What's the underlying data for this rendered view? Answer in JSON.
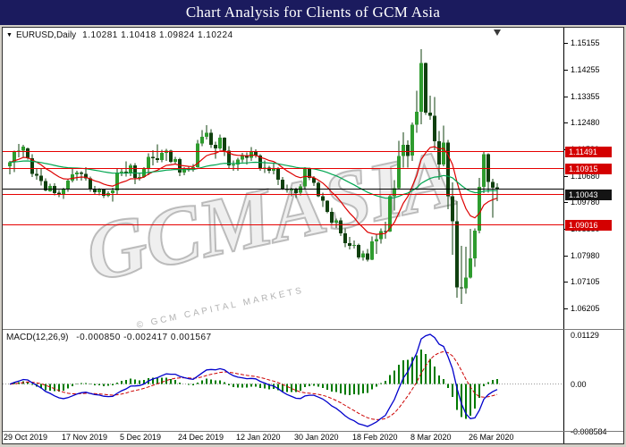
{
  "title_bar": {
    "title": "Chart Analysis for Clients of GCM Asia"
  },
  "icons": {
    "dropdown_glyph": "▼"
  },
  "colors": {
    "title_bar_bg": "#1b1b5e",
    "title_bar_fg": "#ffffff",
    "chart_bg": "#ffffff"
  },
  "price_panel": {
    "symbol_label": "EURUSD,Daily",
    "ohlc_label": "1.10281 1.10418 1.09824 1.10224"
  },
  "macd_panel": {
    "name_label": "MACD(12,26,9)",
    "values_label": "-0.000850 -0.002417 0.001567"
  },
  "watermark": {
    "text": "GCMASIA",
    "subtext": "© GCM CAPITAL MARKETS"
  },
  "chart_data": [
    {
      "type": "candlestick",
      "symbol": "EURUSD",
      "timeframe": "Daily",
      "title": "EURUSD Daily",
      "ylim": [
        1.06205,
        1.15155
      ],
      "yticks": [
        "1.15155",
        "1.14255",
        "1.13355",
        "1.12480",
        "1.11580",
        "1.10680",
        "1.09780",
        "1.08880",
        "1.07980",
        "1.07105",
        "1.06205"
      ],
      "x_labels": [
        "29 Oct 2019",
        "17 Nov 2019",
        "5 Dec 2019",
        "24 Dec 2019",
        "12 Jan 2020",
        "30 Jan 2020",
        "18 Feb 2020",
        "8 Mar 2020",
        "26 Mar 2020"
      ],
      "last_bar": {
        "open": 1.10281,
        "high": 1.10418,
        "low": 1.09824,
        "close": 1.10224
      },
      "bid_price": 1.10224,
      "hlines": [
        {
          "price": 1.11491,
          "label": "1.11491",
          "color": "#e60000",
          "label_bg": "#d40000"
        },
        {
          "price": 1.10915,
          "label": "1.10915",
          "color": "#e60000",
          "label_bg": "#d40000"
        },
        {
          "price": 1.10043,
          "label": "1.10043",
          "color": "#e60000",
          "label_bg": "#141414"
        },
        {
          "price": 1.09016,
          "label": "1.09016",
          "color": "#e60000",
          "label_bg": "#d40000"
        }
      ],
      "overlays": [
        {
          "type": "ema",
          "period": 13,
          "color": "#dd0000"
        },
        {
          "type": "ema",
          "period": 55,
          "color": "#00a550"
        }
      ],
      "colors": {
        "bull": "#2e9c2e",
        "bear": "#10400f",
        "wick": "#10400f"
      },
      "ohlc": [
        [
          1.11,
          1.1118,
          1.1073,
          1.1113
        ],
        [
          1.1113,
          1.1152,
          1.108,
          1.1151
        ],
        [
          1.1151,
          1.1175,
          1.113,
          1.1152
        ],
        [
          1.1152,
          1.1172,
          1.1128,
          1.1166
        ],
        [
          1.116,
          1.1163,
          1.1122,
          1.1127
        ],
        [
          1.1127,
          1.114,
          1.1064,
          1.1074
        ],
        [
          1.1074,
          1.1093,
          1.1054,
          1.1068
        ],
        [
          1.1068,
          1.1091,
          1.1035,
          1.105
        ],
        [
          1.105,
          1.1059,
          1.1016,
          1.1018
        ],
        [
          1.1016,
          1.1041,
          1.1014,
          1.1034
        ],
        [
          1.1034,
          1.1043,
          1.1002,
          1.101
        ],
        [
          1.101,
          1.102,
          1.0995,
          1.1006
        ],
        [
          1.1006,
          1.1027,
          1.0989,
          1.1021
        ],
        [
          1.1021,
          1.1056,
          1.1014,
          1.1051
        ],
        [
          1.1051,
          1.109,
          1.1045,
          1.1072
        ],
        [
          1.1072,
          1.1085,
          1.1052,
          1.1078
        ],
        [
          1.1078,
          1.1083,
          1.1052,
          1.1074
        ],
        [
          1.1074,
          1.1097,
          1.1052,
          1.1059
        ],
        [
          1.1059,
          1.1065,
          1.1014,
          1.1021
        ],
        [
          1.1021,
          1.1033,
          1.1003,
          1.1013
        ],
        [
          1.1013,
          1.1026,
          1.1001,
          1.1021
        ],
        [
          1.1021,
          1.1024,
          1.0992,
          1.1
        ],
        [
          1.1,
          1.1016,
          1.0995,
          1.1009
        ],
        [
          1.1009,
          1.1028,
          1.0981,
          1.1018
        ],
        [
          1.1018,
          1.109,
          1.1003,
          1.1078
        ],
        [
          1.1078,
          1.1093,
          1.1066,
          1.1082
        ],
        [
          1.1082,
          1.1116,
          1.1065,
          1.1077
        ],
        [
          1.1077,
          1.1109,
          1.1066,
          1.1103
        ],
        [
          1.1103,
          1.111,
          1.104,
          1.106
        ],
        [
          1.106,
          1.1079,
          1.1052,
          1.1064
        ],
        [
          1.1064,
          1.1097,
          1.106,
          1.1093
        ],
        [
          1.1093,
          1.1144,
          1.107,
          1.1131
        ],
        [
          1.1131,
          1.1154,
          1.1102,
          1.1127
        ],
        [
          1.1127,
          1.1174,
          1.1111,
          1.112
        ],
        [
          1.112,
          1.1156,
          1.1113,
          1.1145
        ],
        [
          1.1145,
          1.1158,
          1.1118,
          1.1152
        ],
        [
          1.1152,
          1.1155,
          1.111,
          1.1114
        ],
        [
          1.1114,
          1.1131,
          1.1106,
          1.1123
        ],
        [
          1.1123,
          1.1128,
          1.1066,
          1.1078
        ],
        [
          1.1078,
          1.1096,
          1.1069,
          1.109
        ],
        [
          1.109,
          1.1098,
          1.1081,
          1.1088
        ],
        [
          1.1088,
          1.1107,
          1.1081,
          1.1096
        ],
        [
          1.1096,
          1.1188,
          1.1095,
          1.1177
        ],
        [
          1.1177,
          1.1221,
          1.1168,
          1.1199
        ],
        [
          1.1199,
          1.1239,
          1.119,
          1.1212
        ],
        [
          1.1212,
          1.1225,
          1.1162,
          1.1172
        ],
        [
          1.1172,
          1.1182,
          1.1126,
          1.116
        ],
        [
          1.116,
          1.1206,
          1.1155,
          1.1196
        ],
        [
          1.1196,
          1.1198,
          1.1134,
          1.1153
        ],
        [
          1.1153,
          1.1167,
          1.1093,
          1.1103
        ],
        [
          1.1103,
          1.1119,
          1.1085,
          1.1105
        ],
        [
          1.1105,
          1.1129,
          1.1084,
          1.1122
        ],
        [
          1.1122,
          1.1145,
          1.1113,
          1.1134
        ],
        [
          1.1134,
          1.1146,
          1.1105,
          1.1128
        ],
        [
          1.1128,
          1.1164,
          1.1118,
          1.115
        ],
        [
          1.115,
          1.1157,
          1.1128,
          1.1136
        ],
        [
          1.1136,
          1.1141,
          1.1085,
          1.109
        ],
        [
          1.109,
          1.1119,
          1.1077,
          1.1095
        ],
        [
          1.1095,
          1.1101,
          1.1076,
          1.1084
        ],
        [
          1.1084,
          1.1109,
          1.1072,
          1.1093
        ],
        [
          1.1093,
          1.1097,
          1.1037,
          1.1054
        ],
        [
          1.1054,
          1.1064,
          1.102,
          1.1023
        ],
        [
          1.1023,
          1.1038,
          1.101,
          1.1019
        ],
        [
          1.1019,
          1.1028,
          1.0998,
          1.1022
        ],
        [
          1.1022,
          1.1027,
          1.0992,
          1.101
        ],
        [
          1.101,
          1.104,
          1.1001,
          1.1032
        ],
        [
          1.1032,
          1.1096,
          1.1025,
          1.1093
        ],
        [
          1.1093,
          1.1095,
          1.1053,
          1.106
        ],
        [
          1.106,
          1.1066,
          1.1033,
          1.1044
        ],
        [
          1.1044,
          1.1048,
          1.0995,
          1.0999
        ],
        [
          1.0999,
          1.101,
          1.0963,
          1.0983
        ],
        [
          1.0983,
          1.0985,
          1.0941,
          1.0946
        ],
        [
          1.0946,
          1.0959,
          1.0905,
          1.091
        ],
        [
          1.091,
          1.0924,
          1.0891,
          1.0917
        ],
        [
          1.0917,
          1.0926,
          1.0865,
          1.0873
        ],
        [
          1.0873,
          1.089,
          1.0827,
          1.084
        ],
        [
          1.084,
          1.0862,
          1.082,
          1.0831
        ],
        [
          1.0831,
          1.085,
          1.0823,
          1.0835
        ],
        [
          1.0835,
          1.0839,
          1.0786,
          1.0792
        ],
        [
          1.0792,
          1.0815,
          1.0782,
          1.0806
        ],
        [
          1.0806,
          1.0821,
          1.0778,
          1.0785
        ],
        [
          1.0785,
          1.0863,
          1.0783,
          1.0846
        ],
        [
          1.0846,
          1.0871,
          1.0805,
          1.0854
        ],
        [
          1.0854,
          1.089,
          1.0839,
          1.0881
        ],
        [
          1.0881,
          1.0913,
          1.0855,
          1.088
        ],
        [
          1.088,
          1.1006,
          1.0878,
          1.0999
        ],
        [
          1.0999,
          1.1053,
          1.0951,
          1.1026
        ],
        [
          1.1026,
          1.1185,
          1.1025,
          1.1134
        ],
        [
          1.1134,
          1.1214,
          1.1095,
          1.1172
        ],
        [
          1.1172,
          1.1187,
          1.1095,
          1.1135
        ],
        [
          1.1135,
          1.1248,
          1.1118,
          1.124
        ],
        [
          1.124,
          1.1355,
          1.1212,
          1.1284
        ],
        [
          1.1284,
          1.1495,
          1.1241,
          1.1447
        ],
        [
          1.1447,
          1.1449,
          1.1273,
          1.1281
        ],
        [
          1.1281,
          1.1337,
          1.1256,
          1.127
        ],
        [
          1.127,
          1.1333,
          1.1154,
          1.1184
        ],
        [
          1.1184,
          1.1219,
          1.1054,
          1.1106
        ],
        [
          1.1106,
          1.1237,
          1.11,
          1.118
        ],
        [
          1.118,
          1.1189,
          1.0955,
          1.0999
        ],
        [
          1.0999,
          1.1045,
          1.0801,
          1.0915
        ],
        [
          1.0915,
          1.0982,
          1.0656,
          1.0692
        ],
        [
          1.0692,
          1.0831,
          1.0636,
          1.0688
        ],
        [
          1.0688,
          1.0829,
          1.067,
          1.0725
        ],
        [
          1.0725,
          1.0888,
          1.0722,
          1.0789
        ],
        [
          1.0789,
          1.089,
          1.0761,
          1.0883
        ],
        [
          1.0883,
          1.106,
          1.0873,
          1.103
        ],
        [
          1.103,
          1.1148,
          1.1009,
          1.1141
        ],
        [
          1.1141,
          1.1144,
          1.101,
          1.1047
        ],
        [
          1.1047,
          1.1058,
          1.0927,
          1.1028
        ],
        [
          1.10281,
          1.10418,
          1.09824,
          1.10224
        ]
      ]
    },
    {
      "type": "macd",
      "params": [
        12,
        26,
        9
      ],
      "current": {
        "macd": -0.00085,
        "signal": -0.002417,
        "histogram": 0.001567
      },
      "ylim": [
        -0.008584,
        0.01129
      ],
      "yticks": [
        {
          "label": "0.01129",
          "value": 0.01129
        },
        {
          "label": "0.00",
          "value": 0
        },
        {
          "label": "-0.008584",
          "value": -0.008584
        }
      ],
      "colors": {
        "histogram": "#007a00",
        "macd_line": "#0000cc",
        "signal_line": "#cc0000"
      }
    }
  ]
}
